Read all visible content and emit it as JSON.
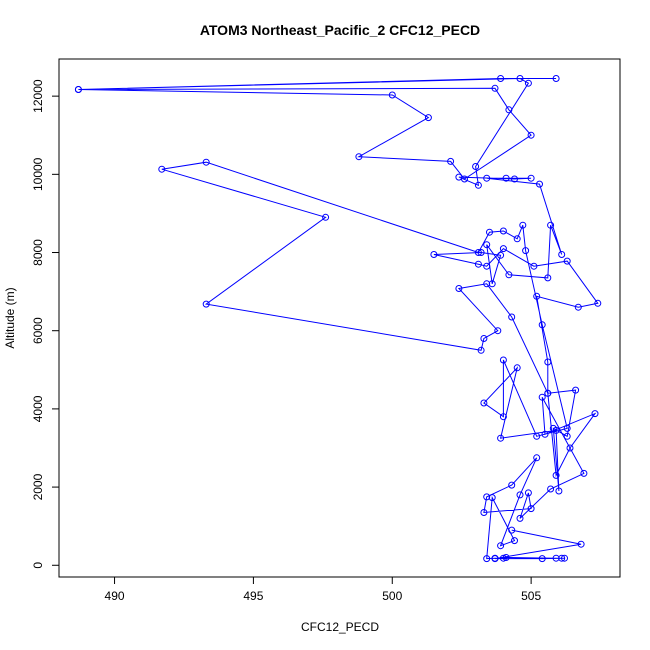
{
  "chart_data": {
    "type": "line",
    "title": "ATOM3 Northeast_Pacific_2 CFC12_PECD",
    "xlabel": "CFC12_PECD",
    "ylabel": "Altitude (m)",
    "xlim": [
      488,
      508.2
    ],
    "ylim": [
      -300,
      12950
    ],
    "xticks": [
      490,
      495,
      500,
      505
    ],
    "yticks": [
      0,
      2000,
      4000,
      6000,
      8000,
      10000,
      12000
    ],
    "grid": false,
    "series": [
      {
        "color": "#0000ff",
        "marker": "open-circle",
        "points": [
          [
            505.9,
            12450
          ],
          [
            503.9,
            12450
          ],
          [
            488.7,
            12170
          ],
          [
            503.7,
            12200
          ],
          [
            504.2,
            11650
          ],
          [
            505.0,
            11000
          ],
          [
            502.6,
            9880
          ],
          [
            502.1,
            10330
          ],
          [
            498.8,
            10450
          ],
          [
            501.3,
            11450
          ],
          [
            500.0,
            12030
          ],
          [
            488.7,
            12170
          ],
          [
            504.6,
            12450
          ],
          [
            504.9,
            12330
          ],
          [
            503.0,
            10200
          ],
          [
            503.1,
            9720
          ],
          [
            502.4,
            9930
          ],
          [
            504.4,
            9880
          ],
          [
            505.0,
            9900
          ],
          [
            504.1,
            9900
          ],
          [
            503.4,
            9900
          ],
          [
            505.3,
            9750
          ],
          [
            506.1,
            7950
          ],
          [
            505.7,
            8700
          ],
          [
            505.6,
            7350
          ],
          [
            504.2,
            7430
          ],
          [
            503.4,
            8200
          ],
          [
            503.6,
            7200
          ],
          [
            503.9,
            7930
          ],
          [
            503.2,
            8000
          ],
          [
            501.5,
            7950
          ],
          [
            503.1,
            7700
          ],
          [
            503.4,
            7650
          ],
          [
            504.0,
            8100
          ],
          [
            505.1,
            7650
          ],
          [
            506.3,
            7780
          ],
          [
            507.4,
            6700
          ],
          [
            506.7,
            6600
          ],
          [
            505.2,
            6880
          ],
          [
            505.6,
            5200
          ],
          [
            505.6,
            4400
          ],
          [
            504.3,
            6350
          ],
          [
            503.4,
            7200
          ],
          [
            502.4,
            7080
          ],
          [
            503.8,
            6000
          ],
          [
            503.3,
            5800
          ],
          [
            503.2,
            5500
          ],
          [
            493.3,
            6680
          ],
          [
            497.6,
            8900
          ],
          [
            491.7,
            10130
          ],
          [
            493.3,
            10310
          ],
          [
            503.1,
            8000
          ],
          [
            503.5,
            8520
          ],
          [
            504.0,
            8550
          ],
          [
            504.5,
            8350
          ],
          [
            504.7,
            8700
          ],
          [
            504.8,
            8050
          ],
          [
            505.4,
            6150
          ],
          [
            506.3,
            3500
          ],
          [
            505.2,
            3300
          ],
          [
            504.0,
            5250
          ],
          [
            504.0,
            3800
          ],
          [
            503.3,
            4150
          ],
          [
            504.5,
            5050
          ],
          [
            503.9,
            3250
          ],
          [
            505.9,
            3450
          ],
          [
            506.0,
            1900
          ],
          [
            505.8,
            3500
          ],
          [
            506.3,
            3300
          ],
          [
            506.6,
            4480
          ],
          [
            505.6,
            4400
          ],
          [
            505.9,
            2300
          ],
          [
            506.4,
            3000
          ],
          [
            507.3,
            3880
          ],
          [
            505.5,
            3350
          ],
          [
            505.4,
            4300
          ],
          [
            506.9,
            2350
          ],
          [
            505.7,
            1950
          ],
          [
            504.6,
            1200
          ],
          [
            504.9,
            1850
          ],
          [
            505.0,
            1450
          ],
          [
            503.3,
            1350
          ],
          [
            503.4,
            1750
          ],
          [
            504.3,
            2050
          ],
          [
            505.2,
            2750
          ],
          [
            504.6,
            1800
          ],
          [
            503.9,
            500
          ],
          [
            504.4,
            630
          ],
          [
            503.6,
            1730
          ],
          [
            503.4,
            170
          ],
          [
            503.7,
            180
          ],
          [
            504.0,
            180
          ],
          [
            504.1,
            200
          ],
          [
            505.9,
            180
          ],
          [
            506.1,
            180
          ],
          [
            506.2,
            180
          ],
          [
            505.4,
            170
          ],
          [
            503.7,
            170
          ],
          [
            506.8,
            540
          ],
          [
            504.3,
            900
          ]
        ]
      }
    ]
  }
}
